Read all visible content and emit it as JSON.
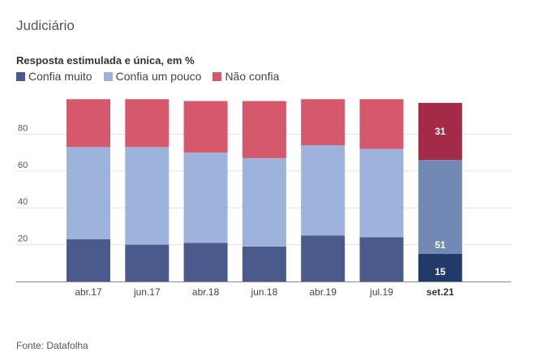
{
  "header": {
    "title": "Judiciário",
    "subtitle": "Resposta estimulada e única, em %"
  },
  "legend": [
    {
      "label": "Confia muito",
      "color": "#4a5a8c"
    },
    {
      "label": "Confia um pouco",
      "color": "#9db3db"
    },
    {
      "label": "Não confia",
      "color": "#d6586c"
    }
  ],
  "footer": {
    "source": "Fonte: Datafolha"
  },
  "chart_data": {
    "type": "bar",
    "stacked": true,
    "categories": [
      "abr.17",
      "jun.17",
      "abr.18",
      "jun.18",
      "abr.19",
      "jul.19",
      "set.21"
    ],
    "series": [
      {
        "name": "Confia muito",
        "values": [
          23,
          20,
          21,
          19,
          25,
          24,
          15
        ]
      },
      {
        "name": "Confia um pouco",
        "values": [
          50,
          53,
          49,
          48,
          49,
          48,
          51
        ]
      },
      {
        "name": "Não confia",
        "values": [
          26,
          26,
          28,
          31,
          25,
          27,
          31
        ]
      }
    ],
    "yticks": [
      20,
      40,
      60,
      80
    ],
    "ylim": [
      0,
      100
    ],
    "grid": true,
    "highlight_category": "set.21",
    "highlight_colors": [
      "#213a6a",
      "#7189b4",
      "#a42b48"
    ],
    "data_labels": {
      "category": "set.21",
      "values": [
        15,
        51,
        31
      ]
    }
  }
}
